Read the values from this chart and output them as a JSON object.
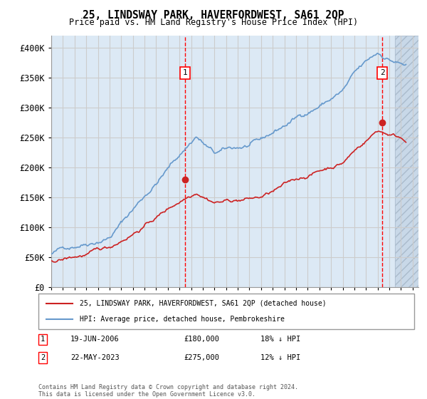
{
  "title": "25, LINDSWAY PARK, HAVERFORDWEST, SA61 2QP",
  "subtitle": "Price paid vs. HM Land Registry's House Price Index (HPI)",
  "hpi_color": "#6699cc",
  "sale_color": "#cc2222",
  "bg_color": "#dce9f5",
  "hatch_color": "#c8d8e8",
  "grid_color": "#cccccc",
  "ylim": [
    0,
    420000
  ],
  "yticks": [
    0,
    50000,
    100000,
    150000,
    200000,
    250000,
    300000,
    350000,
    400000
  ],
  "ytick_labels": [
    "£0",
    "£50K",
    "£100K",
    "£150K",
    "£200K",
    "£250K",
    "£300K",
    "£350K",
    "£400K"
  ],
  "sale1_x": 2006.47,
  "sale1_y": 180000,
  "sale2_x": 2023.39,
  "sale2_y": 275000,
  "legend_entry1": "25, LINDSWAY PARK, HAVERFORDWEST, SA61 2QP (detached house)",
  "legend_entry2": "HPI: Average price, detached house, Pembrokeshire",
  "copyright": "Contains HM Land Registry data © Crown copyright and database right 2024.\nThis data is licensed under the Open Government Licence v3.0.",
  "hatch_start_year": 2024.5,
  "x_min": 1995,
  "x_max": 2026.5
}
